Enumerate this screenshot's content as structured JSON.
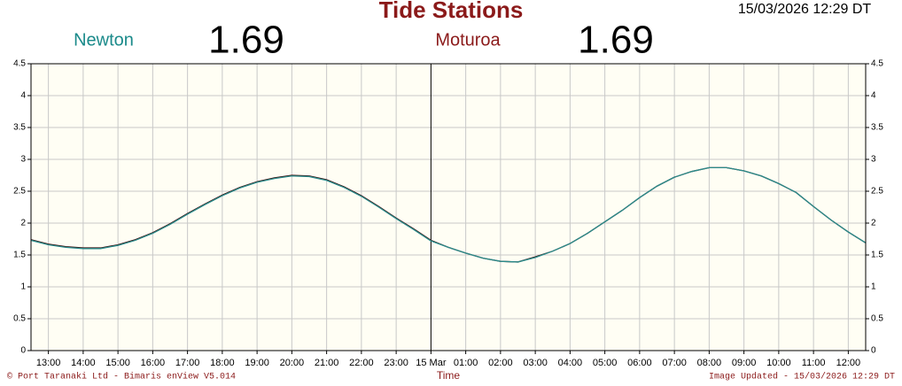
{
  "header": {
    "title": "Tide Stations",
    "timestamp": "15/03/2026 12:29 DT",
    "stations": [
      {
        "name": "Newton",
        "reading": "1.69"
      },
      {
        "name": "Moturoa",
        "reading": "1.69"
      }
    ]
  },
  "footer": {
    "copyright": "© Port Taranaki Ltd - Bimaris enView V5.014",
    "updated": "Image Updated - 15/03/2026 12:29 DT"
  },
  "chart_data": {
    "type": "line",
    "xlabel": "Time",
    "x": [
      12.5,
      13,
      13.5,
      14,
      14.5,
      15,
      15.5,
      16,
      16.5,
      17,
      17.5,
      18,
      18.5,
      19,
      19.5,
      20,
      20.5,
      21,
      21.5,
      22,
      22.5,
      23,
      23.5,
      24,
      24.5,
      25,
      25.5,
      26,
      26.5,
      27,
      27.5,
      28,
      28.5,
      29,
      29.5,
      30,
      30.5,
      31,
      31.5,
      32,
      32.5,
      33,
      33.5,
      34,
      34.5,
      35,
      35.5,
      36,
      36.5
    ],
    "series": [
      {
        "name": "Moturoa",
        "color": "#3a1010",
        "values": [
          1.74,
          1.67,
          1.63,
          1.61,
          1.61,
          1.66,
          1.74,
          1.85,
          1.99,
          2.15,
          2.3,
          2.44,
          2.56,
          2.65,
          2.71,
          2.75,
          2.74,
          2.68,
          2.57,
          2.43,
          2.26,
          2.08,
          1.91,
          1.73,
          1.62,
          1.53,
          1.45,
          1.4,
          1.39,
          1.47,
          1.56,
          1.68,
          1.84,
          2.02,
          2.2,
          2.4,
          2.58,
          2.72,
          2.81,
          2.87,
          2.87,
          2.82,
          2.74,
          2.62,
          2.48,
          2.26,
          2.05,
          1.86,
          1.69
        ]
      },
      {
        "name": "Newton",
        "color": "#2a8c8c",
        "values": [
          1.73,
          1.66,
          1.62,
          1.6,
          1.6,
          1.65,
          1.73,
          1.84,
          1.98,
          2.14,
          2.29,
          2.43,
          2.55,
          2.64,
          2.7,
          2.74,
          2.73,
          2.67,
          2.56,
          2.42,
          2.25,
          2.07,
          1.9,
          1.72,
          1.62,
          1.53,
          1.45,
          1.4,
          1.39,
          1.46,
          1.56,
          1.68,
          1.84,
          2.02,
          2.2,
          2.4,
          2.58,
          2.72,
          2.81,
          2.87,
          2.87,
          2.82,
          2.74,
          2.62,
          2.48,
          2.26,
          2.05,
          1.86,
          1.69
        ]
      }
    ],
    "xlim": [
      12.5,
      36.5
    ],
    "xticks": [
      {
        "value": 13,
        "label": "13:00"
      },
      {
        "value": 14,
        "label": "14:00"
      },
      {
        "value": 15,
        "label": "15:00"
      },
      {
        "value": 16,
        "label": "16:00"
      },
      {
        "value": 17,
        "label": "17:00"
      },
      {
        "value": 18,
        "label": "18:00"
      },
      {
        "value": 19,
        "label": "19:00"
      },
      {
        "value": 20,
        "label": "20:00"
      },
      {
        "value": 21,
        "label": "21:00"
      },
      {
        "value": 22,
        "label": "22:00"
      },
      {
        "value": 23,
        "label": "23:00"
      },
      {
        "value": 24,
        "label": "15 Mar"
      },
      {
        "value": 25,
        "label": "01:00"
      },
      {
        "value": 26,
        "label": "02:00"
      },
      {
        "value": 27,
        "label": "03:00"
      },
      {
        "value": 28,
        "label": "04:00"
      },
      {
        "value": 29,
        "label": "05:00"
      },
      {
        "value": 30,
        "label": "06:00"
      },
      {
        "value": 31,
        "label": "07:00"
      },
      {
        "value": 32,
        "label": "08:00"
      },
      {
        "value": 33,
        "label": "09:00"
      },
      {
        "value": 34,
        "label": "10:00"
      },
      {
        "value": 35,
        "label": "11:00"
      },
      {
        "value": 36,
        "label": "12:00"
      }
    ],
    "ylim": [
      0,
      4.5
    ],
    "yticks": [
      0,
      0.5,
      1,
      1.5,
      2,
      2.5,
      3,
      3.5,
      4,
      4.5
    ],
    "grid": true,
    "day_line": 24
  }
}
